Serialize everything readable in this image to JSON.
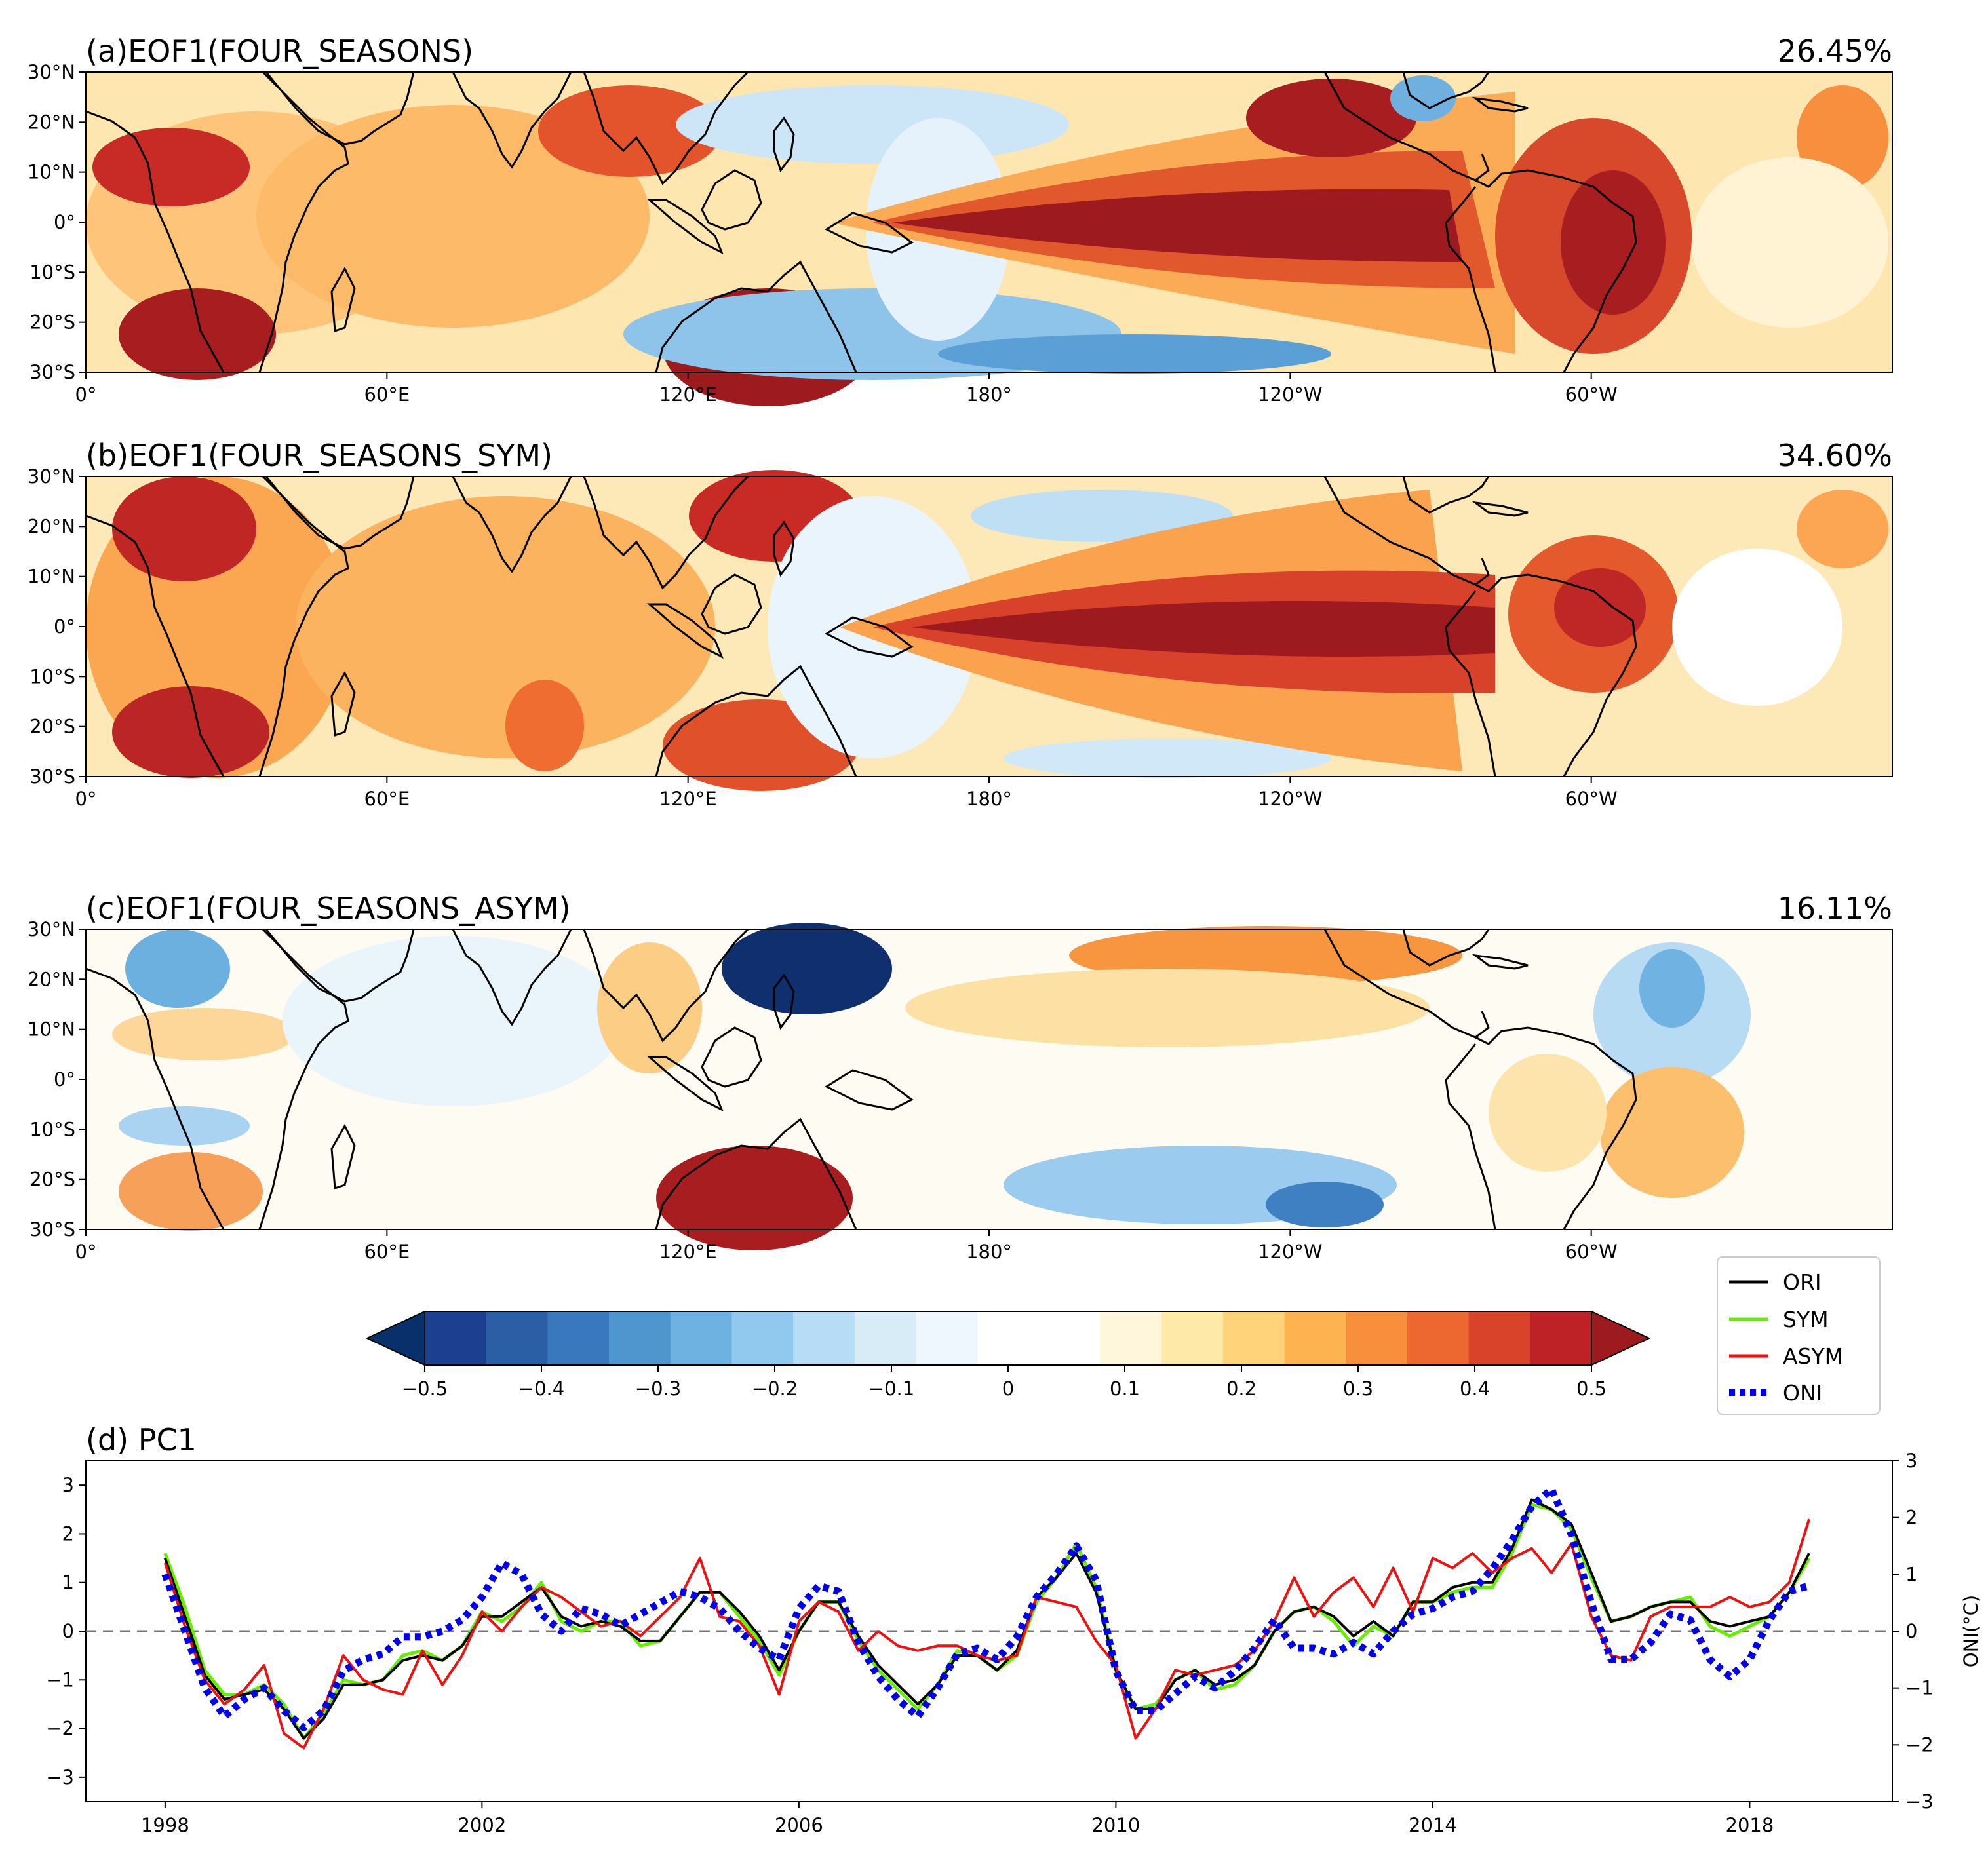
{
  "colors": {
    "scale": [
      "#08306b",
      "#1c3f8f",
      "#2a5ea5",
      "#3a78bd",
      "#4f96cf",
      "#6db2e0",
      "#91c9ee",
      "#b6ddf5",
      "#d8ecf8",
      "#eef7fd",
      "#ffffff",
      "#ffffff",
      "#fff6db",
      "#ffe9a9",
      "#fed37a",
      "#fdb34f",
      "#f78f3c",
      "#ec6830",
      "#d9432a",
      "#bf2226",
      "#9d1b1f"
    ],
    "ori": "#000000",
    "sym": "#66ee00",
    "asym": "#ee1111",
    "oni": "#0000ee",
    "coast": "#000000",
    "lake": "#a8c4dc"
  },
  "maps": {
    "lat_ticks": [
      "30°N",
      "20°N",
      "10°N",
      "0°",
      "10°S",
      "20°S",
      "30°S"
    ],
    "lon_ticks": [
      "0°",
      "60°E",
      "120°E",
      "180°",
      "120°W",
      "60°W"
    ],
    "panels": [
      {
        "id": "a",
        "title": "(a)EOF1(FOUR_SEASONS)",
        "variance": "26.45%"
      },
      {
        "id": "b",
        "title": "(b)EOF1(FOUR_SEASONS_SYM)",
        "variance": "34.60%"
      },
      {
        "id": "c",
        "title": "(c)EOF1(FOUR_SEASONS_ASYM)",
        "variance": "16.11%"
      }
    ]
  },
  "colorbar": {
    "ticks": [
      "−0.5",
      "−0.4",
      "−0.3",
      "−0.2",
      "−0.1",
      "0",
      "0.1",
      "0.2",
      "0.3",
      "0.4",
      "0.5"
    ],
    "extend": "both"
  },
  "legend": {
    "entries": [
      "ORI",
      "SYM",
      "ASYM",
      "ONI"
    ]
  },
  "chart_data": {
    "type": "line",
    "title": "(d) PC1",
    "xlabel": "",
    "ylabel": "",
    "ylabel_right": "ONI(°C)",
    "xlim": [
      1997,
      2019.8
    ],
    "ylim": [
      -3.5,
      3.5
    ],
    "ylim_right": [
      -3,
      3
    ],
    "xticks": [
      "1998",
      "2002",
      "2006",
      "2010",
      "2014",
      "2018"
    ],
    "yticks_left": [
      "−3",
      "−2",
      "−1",
      "0",
      "1",
      "2",
      "3"
    ],
    "yticks_right": [
      "−3",
      "−2",
      "−1",
      "0",
      "1",
      "2",
      "3"
    ],
    "zero_line": "dashed",
    "x_start": 1998,
    "x_step": 0.25,
    "series": [
      {
        "name": "ORI",
        "axis": "left",
        "values": [
          1.5,
          0.3,
          -0.9,
          -1.4,
          -1.3,
          -1.2,
          -1.6,
          -2.2,
          -1.8,
          -1.1,
          -1.1,
          -1.0,
          -0.6,
          -0.5,
          -0.6,
          -0.3,
          0.3,
          0.3,
          0.6,
          0.9,
          0.3,
          0.1,
          0.2,
          0.1,
          -0.2,
          -0.2,
          0.3,
          0.8,
          0.8,
          0.4,
          -0.1,
          -0.8,
          0.0,
          0.6,
          0.6,
          -0.1,
          -0.7,
          -1.1,
          -1.5,
          -1.1,
          -0.5,
          -0.5,
          -0.8,
          -0.4,
          0.7,
          1.1,
          1.6,
          0.8,
          -0.8,
          -1.6,
          -1.6,
          -1.0,
          -0.8,
          -1.1,
          -1.0,
          -0.7,
          0.0,
          0.4,
          0.5,
          0.3,
          -0.1,
          0.2,
          -0.1,
          0.6,
          0.6,
          0.9,
          1.0,
          1.0,
          1.7,
          2.7,
          2.5,
          2.2,
          1.2,
          0.2,
          0.3,
          0.5,
          0.6,
          0.6,
          0.2,
          0.1,
          0.2,
          0.3,
          0.8,
          1.6
        ]
      },
      {
        "name": "SYM",
        "axis": "left",
        "values": [
          1.6,
          0.5,
          -0.8,
          -1.3,
          -1.3,
          -1.1,
          -1.5,
          -2.2,
          -1.7,
          -1.0,
          -1.1,
          -1.0,
          -0.5,
          -0.4,
          -0.6,
          -0.3,
          0.4,
          0.2,
          0.5,
          1.0,
          0.2,
          0.0,
          0.2,
          0.2,
          -0.3,
          -0.2,
          0.3,
          0.8,
          0.8,
          0.3,
          -0.2,
          -0.9,
          0.0,
          0.6,
          0.6,
          -0.2,
          -0.8,
          -1.2,
          -1.6,
          -1.1,
          -0.4,
          -0.5,
          -0.8,
          -0.5,
          0.6,
          1.1,
          1.8,
          0.9,
          -0.8,
          -1.6,
          -1.5,
          -1.0,
          -0.8,
          -1.2,
          -1.1,
          -0.7,
          0.0,
          0.4,
          0.5,
          0.2,
          -0.3,
          0.1,
          -0.1,
          0.6,
          0.6,
          0.8,
          0.9,
          0.9,
          1.6,
          2.6,
          2.5,
          2.1,
          1.1,
          0.2,
          0.3,
          0.5,
          0.6,
          0.7,
          0.1,
          -0.1,
          0.1,
          0.3,
          0.8,
          1.5
        ]
      },
      {
        "name": "ASYM",
        "axis": "left",
        "values": [
          1.4,
          0.1,
          -1.0,
          -1.5,
          -1.2,
          -0.7,
          -2.1,
          -2.4,
          -1.6,
          -0.5,
          -1.0,
          -1.2,
          -1.3,
          -0.4,
          -1.1,
          -0.5,
          0.4,
          0.0,
          0.5,
          0.9,
          0.7,
          0.4,
          0.1,
          0.2,
          -0.1,
          0.3,
          0.7,
          1.5,
          0.3,
          0.2,
          -0.3,
          -1.3,
          0.2,
          0.6,
          0.4,
          -0.4,
          0.0,
          -0.3,
          -0.4,
          -0.3,
          -0.3,
          -0.5,
          -0.6,
          -0.5,
          0.7,
          0.6,
          0.5,
          -0.2,
          -0.7,
          -2.2,
          -1.6,
          -0.8,
          -0.9,
          -0.8,
          -0.7,
          -0.4,
          0.2,
          1.1,
          0.3,
          0.8,
          1.1,
          0.5,
          1.3,
          0.4,
          1.5,
          1.3,
          1.6,
          1.2,
          1.5,
          1.7,
          1.2,
          1.8,
          0.3,
          -0.5,
          -0.6,
          0.3,
          0.5,
          0.5,
          0.5,
          0.7,
          0.5,
          0.6,
          1.0,
          2.3
        ]
      },
      {
        "name": "ONI",
        "axis": "right",
        "values": [
          1.0,
          0.0,
          -1.0,
          -1.5,
          -1.2,
          -1.0,
          -1.4,
          -1.7,
          -1.4,
          -0.7,
          -0.5,
          -0.4,
          -0.1,
          -0.1,
          0.0,
          0.2,
          0.6,
          1.2,
          1.0,
          0.3,
          0.0,
          0.4,
          0.3,
          0.1,
          0.3,
          0.5,
          0.7,
          0.6,
          0.4,
          0.0,
          -0.3,
          -0.5,
          0.4,
          0.8,
          0.7,
          -0.2,
          -0.8,
          -1.2,
          -1.5,
          -1.0,
          -0.4,
          -0.3,
          -0.5,
          -0.1,
          0.6,
          1.0,
          1.5,
          0.9,
          -0.7,
          -1.4,
          -1.4,
          -1.1,
          -0.8,
          -1.0,
          -0.7,
          -0.3,
          0.2,
          -0.3,
          -0.3,
          -0.4,
          -0.2,
          -0.4,
          0.0,
          0.3,
          0.4,
          0.6,
          0.7,
          1.1,
          1.6,
          2.2,
          2.5,
          1.7,
          0.5,
          -0.5,
          -0.5,
          -0.2,
          0.3,
          0.2,
          -0.5,
          -0.8,
          -0.5,
          0.2,
          0.7,
          0.8
        ]
      }
    ]
  }
}
